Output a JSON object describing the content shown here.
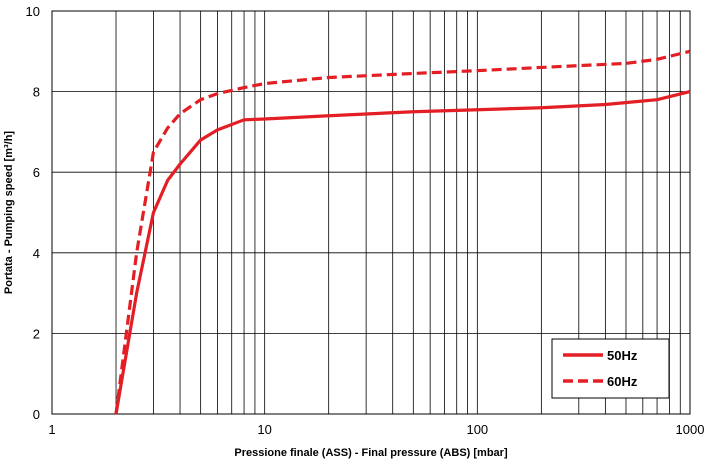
{
  "chart_data": {
    "type": "line",
    "xscale": "log",
    "xlim": [
      1,
      1000
    ],
    "ylim": [
      0,
      10
    ],
    "grid": true,
    "legend_position": "bottom-right",
    "xlabel": "Pressione finale (ASS) - Final pressure (ABS) [mbar]",
    "ylabel": "Portata - Pumping speed [m³/h]",
    "x_ticks": [
      {
        "value": 1,
        "label": "1"
      },
      {
        "value": 10,
        "label": "10"
      },
      {
        "value": 100,
        "label": "100"
      },
      {
        "value": 1000,
        "label": "1000"
      }
    ],
    "y_ticks": [
      {
        "value": 0,
        "label": "0"
      },
      {
        "value": 2,
        "label": "2"
      },
      {
        "value": 4,
        "label": "4"
      },
      {
        "value": 6,
        "label": "6"
      },
      {
        "value": 8,
        "label": "8"
      },
      {
        "value": 10,
        "label": "10"
      }
    ],
    "series": [
      {
        "name": "50Hz",
        "style": "solid",
        "color": "#e31e24",
        "points": [
          [
            2,
            0
          ],
          [
            2.5,
            3
          ],
          [
            3,
            5
          ],
          [
            3.5,
            5.8
          ],
          [
            4,
            6.2
          ],
          [
            5,
            6.8
          ],
          [
            6,
            7.05
          ],
          [
            8,
            7.3
          ],
          [
            10,
            7.32
          ],
          [
            20,
            7.4
          ],
          [
            50,
            7.5
          ],
          [
            100,
            7.55
          ],
          [
            200,
            7.6
          ],
          [
            400,
            7.68
          ],
          [
            700,
            7.8
          ],
          [
            1000,
            8.0
          ]
        ]
      },
      {
        "name": "60Hz",
        "style": "dashed",
        "color": "#e31e24",
        "points": [
          [
            2,
            0
          ],
          [
            2.5,
            4
          ],
          [
            3,
            6.5
          ],
          [
            3.5,
            7.1
          ],
          [
            4,
            7.45
          ],
          [
            5,
            7.8
          ],
          [
            6,
            7.95
          ],
          [
            8,
            8.1
          ],
          [
            10,
            8.2
          ],
          [
            20,
            8.35
          ],
          [
            50,
            8.45
          ],
          [
            100,
            8.52
          ],
          [
            200,
            8.6
          ],
          [
            500,
            8.7
          ],
          [
            700,
            8.8
          ],
          [
            1000,
            9.0
          ]
        ]
      }
    ]
  }
}
